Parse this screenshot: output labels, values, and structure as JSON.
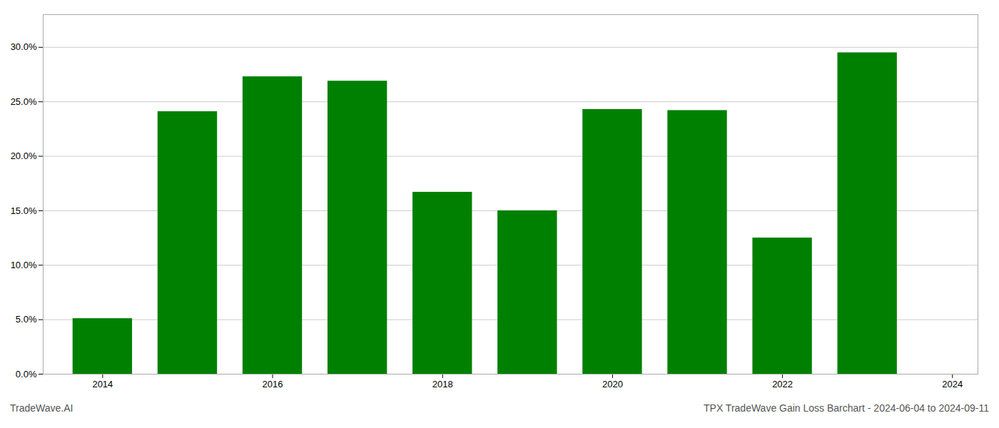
{
  "chart_data": {
    "type": "bar",
    "title": "TPX TradeWave Gain Loss Barchart - 2024-06-04 to 2024-09-11",
    "annotations": [
      "TradeWave.AI"
    ],
    "x": [
      2014,
      2015,
      2016,
      2017,
      2018,
      2019,
      2020,
      2021,
      2022,
      2023
    ],
    "values": [
      0.051,
      0.241,
      0.273,
      0.269,
      0.167,
      0.15,
      0.243,
      0.242,
      0.125,
      0.295
    ],
    "color": "#008000",
    "xlim": [
      2013.3,
      2024.3
    ],
    "xticks": [
      2014,
      2016,
      2018,
      2020,
      2022,
      2024
    ],
    "ylim": [
      0,
      0.33
    ],
    "yticks": [
      {
        "value": 0.0,
        "label": "0.0%"
      },
      {
        "value": 0.05,
        "label": "5.0%"
      },
      {
        "value": 0.1,
        "label": "10.0%"
      },
      {
        "value": 0.15,
        "label": "15.0%"
      },
      {
        "value": 0.2,
        "label": "20.0%"
      },
      {
        "value": 0.25,
        "label": "25.0%"
      },
      {
        "value": 0.3,
        "label": "30.0%"
      }
    ],
    "grid": true
  }
}
